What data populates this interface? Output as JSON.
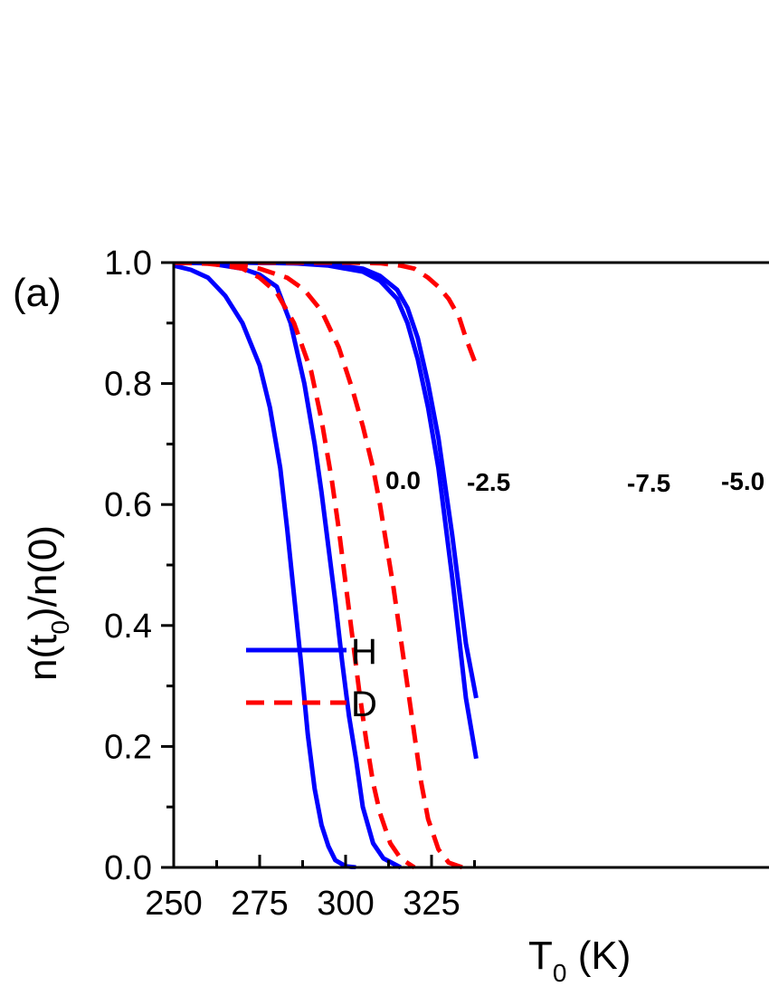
{
  "panel_label": "(a)",
  "chart_data": {
    "type": "line",
    "xlabel": {
      "main": "T",
      "sub": "0",
      "unit": " (K)"
    },
    "ylabel": {
      "p1": "n(t",
      "sub": "0",
      "p2": ")/n(0)"
    },
    "xlim": [
      250,
      338
    ],
    "ylim": [
      0,
      1
    ],
    "x_ticks": [
      250,
      275,
      300,
      325
    ],
    "x_tick_labels": [
      "250",
      "275",
      "300",
      "325"
    ],
    "y_ticks": [
      0,
      0.2,
      0.4,
      0.6,
      0.8,
      1.0
    ],
    "y_tick_labels": [
      "0.0",
      "0.2",
      "0.4",
      "0.6",
      "0.8",
      "1.0"
    ],
    "legend": {
      "position": "lower-left",
      "entries": [
        {
          "label": "H",
          "color": "#0000ff",
          "style": "solid"
        },
        {
          "label": "D",
          "color": "#ff0000",
          "style": "dashed"
        }
      ]
    },
    "curve_labels": [
      "0.0",
      "-2.5",
      "-7.5",
      "-5.0"
    ],
    "series": [
      {
        "color": "#0000ff",
        "style": "solid",
        "x": [
          250,
          255,
          260,
          265,
          270,
          275,
          278,
          281,
          283,
          285,
          287,
          289,
          291,
          293,
          295,
          297,
          300,
          303
        ],
        "y": [
          0.995,
          0.988,
          0.975,
          0.945,
          0.9,
          0.83,
          0.76,
          0.66,
          0.56,
          0.45,
          0.34,
          0.22,
          0.13,
          0.07,
          0.035,
          0.012,
          0.002,
          0.0
        ]
      },
      {
        "color": "#0000ff",
        "style": "solid",
        "x": [
          250,
          260,
          270,
          275,
          280,
          284,
          288,
          291,
          293,
          295,
          297,
          299,
          301,
          303,
          305,
          308,
          311,
          316
        ],
        "y": [
          1.0,
          0.999,
          0.99,
          0.98,
          0.96,
          0.9,
          0.8,
          0.7,
          0.62,
          0.53,
          0.44,
          0.34,
          0.25,
          0.18,
          0.1,
          0.04,
          0.015,
          0.0
        ]
      },
      {
        "color": "#ff0000",
        "style": "dashed",
        "x": [
          250,
          260,
          265,
          270,
          275,
          280,
          285,
          290,
          293,
          296,
          298,
          300,
          302,
          304,
          306,
          308,
          310,
          313,
          316,
          320
        ],
        "y": [
          1.0,
          0.998,
          0.995,
          0.99,
          0.975,
          0.95,
          0.9,
          0.82,
          0.74,
          0.64,
          0.56,
          0.47,
          0.38,
          0.29,
          0.21,
          0.14,
          0.09,
          0.04,
          0.015,
          0.0
        ]
      },
      {
        "color": "#ff0000",
        "style": "dashed",
        "x": [
          250,
          265,
          275,
          283,
          288,
          293,
          298,
          302,
          305,
          308,
          310,
          312,
          314,
          316,
          318,
          320,
          322,
          324,
          327,
          330,
          334
        ],
        "y": [
          1.0,
          0.998,
          0.99,
          0.975,
          0.955,
          0.92,
          0.86,
          0.79,
          0.73,
          0.66,
          0.6,
          0.53,
          0.46,
          0.38,
          0.3,
          0.22,
          0.14,
          0.08,
          0.03,
          0.008,
          0.0
        ]
      },
      {
        "color": "#0000ff",
        "style": "solid",
        "x": [
          250,
          270,
          285,
          295,
          305,
          310,
          315,
          318,
          321,
          324,
          327,
          329,
          331,
          333,
          335,
          338
        ],
        "y": [
          1.0,
          1.0,
          0.999,
          0.995,
          0.985,
          0.97,
          0.94,
          0.9,
          0.84,
          0.76,
          0.66,
          0.57,
          0.48,
          0.38,
          0.28,
          0.18
        ]
      },
      {
        "color": "#0000ff",
        "style": "solid",
        "x": [
          250,
          270,
          285,
          295,
          305,
          310,
          315,
          318,
          321,
          324,
          327,
          329,
          331,
          333,
          335,
          338
        ],
        "y": [
          1.0,
          1.0,
          0.999,
          0.997,
          0.99,
          0.978,
          0.955,
          0.925,
          0.875,
          0.8,
          0.71,
          0.63,
          0.55,
          0.46,
          0.37,
          0.28
        ]
      },
      {
        "color": "#ff0000",
        "style": "dashed",
        "x": [
          250,
          280,
          300,
          310,
          316,
          320,
          324,
          327,
          330,
          333,
          335,
          338
        ],
        "y": [
          1.0,
          1.0,
          1.0,
          0.999,
          0.995,
          0.99,
          0.975,
          0.96,
          0.94,
          0.91,
          0.875,
          0.83
        ]
      }
    ]
  }
}
